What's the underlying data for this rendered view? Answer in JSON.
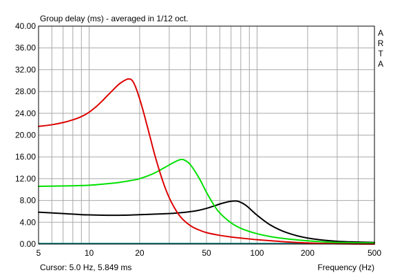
{
  "chart_data": {
    "type": "line",
    "title": "Group delay (ms) - averaged in 1/12 oct.",
    "brand": "ARTA",
    "xlabel": "Frequency (Hz)",
    "ylabel": "",
    "x_scale": "log",
    "xlim": [
      5,
      500
    ],
    "ylim": [
      0,
      40
    ],
    "x_ticks": [
      5,
      10,
      20,
      50,
      100,
      200,
      500
    ],
    "x_tick_labels": [
      "5",
      "10",
      "20",
      "50",
      "100",
      "200",
      "500"
    ],
    "y_ticks": [
      0,
      4,
      8,
      12,
      16,
      20,
      24,
      28,
      32,
      36,
      40
    ],
    "y_tick_labels": [
      "0.00",
      "4.00",
      "8.00",
      "12.00",
      "16.00",
      "20.00",
      "24.00",
      "28.00",
      "32.00",
      "36.00",
      "40.00"
    ],
    "grid": true,
    "cursor": "Cursor: 5.0 Hz, 5.849 ms",
    "series": [
      {
        "color": "#000000",
        "x": [
          5,
          7,
          9,
          12,
          16,
          20,
          25,
          30,
          35,
          40,
          45,
          50,
          55,
          60,
          65,
          70,
          74,
          78,
          85,
          92,
          100,
          120,
          150,
          200,
          300,
          500
        ],
        "y": [
          5.85,
          5.6,
          5.4,
          5.3,
          5.3,
          5.4,
          5.5,
          5.6,
          5.75,
          5.95,
          6.2,
          6.55,
          6.95,
          7.35,
          7.65,
          7.85,
          7.9,
          7.8,
          7.2,
          6.3,
          5.3,
          3.5,
          2.1,
          1.1,
          0.5,
          0.3
        ]
      },
      {
        "color": "#00e000",
        "x": [
          5,
          8,
          10,
          12,
          15,
          18,
          20,
          24,
          28,
          32,
          35,
          37,
          40,
          45,
          50,
          55,
          60,
          70,
          80,
          100,
          130,
          200,
          300,
          500
        ],
        "y": [
          10.6,
          10.7,
          10.8,
          11.0,
          11.3,
          11.7,
          12.0,
          12.9,
          14.0,
          15.0,
          15.5,
          15.4,
          14.6,
          12.2,
          9.5,
          7.3,
          5.7,
          3.9,
          2.9,
          1.9,
          1.2,
          0.6,
          0.3,
          0.2
        ]
      },
      {
        "color": "#dd0000",
        "x": [
          5,
          6,
          7,
          8,
          9,
          10,
          11,
          12,
          13,
          14,
          15,
          16,
          17,
          17.8,
          18.5,
          19.5,
          21,
          23,
          25,
          28,
          31,
          35,
          40,
          45,
          50,
          60,
          70,
          80,
          100,
          150,
          200,
          300,
          500
        ],
        "y": [
          21.6,
          21.9,
          22.3,
          22.8,
          23.4,
          24.2,
          25.2,
          26.3,
          27.4,
          28.4,
          29.3,
          29.9,
          30.3,
          30.2,
          29.5,
          27.7,
          24.4,
          19.8,
          15.6,
          10.8,
          7.6,
          5.0,
          3.4,
          2.6,
          2.1,
          1.6,
          1.3,
          1.1,
          0.8,
          0.4,
          0.2,
          0.05,
          0.0
        ]
      }
    ]
  }
}
